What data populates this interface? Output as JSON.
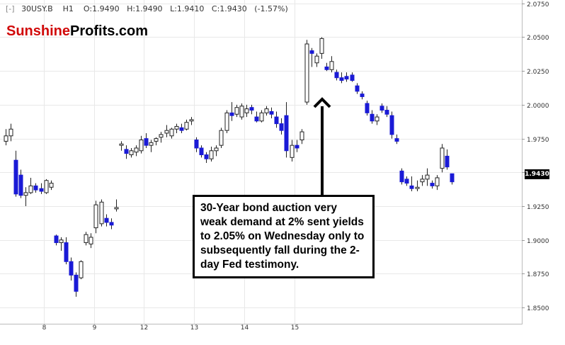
{
  "header": {
    "collapse_box": "[-]",
    "symbol": "30USY.B",
    "timeframe": "H1",
    "open": "O:1.9490",
    "high": "H:1.9490",
    "low": "L:1.9410",
    "close": "C:1.9430",
    "change": "(-1.57%)"
  },
  "logo": {
    "part1": "Sunshine",
    "part2": "Profits",
    "part3": ".com",
    "accent_color": "#d10a0a"
  },
  "annotation": {
    "text": "30-Year bond auction very weak demand at 2% sent yields to 2.05% on Wednesday only to subsequently fall during the 2-day Fed testimony."
  },
  "last_price_label": "1.9430",
  "chart_data": {
    "type": "candlestick",
    "title": "",
    "xlabel": "",
    "ylabel": "",
    "ylim": [
      1.8375,
      2.0775
    ],
    "yticks": [
      "2.0750",
      "2.0500",
      "2.0250",
      "2.0000",
      "1.9750",
      "1.9500",
      "1.9250",
      "1.9000",
      "1.8750",
      "1.8500"
    ],
    "xticks": [
      {
        "label": "8",
        "bar": 7.6
      },
      {
        "label": "9",
        "bar": 17.6
      },
      {
        "label": "12",
        "bar": 27.6
      },
      {
        "label": "13",
        "bar": 37.6
      },
      {
        "label": "14",
        "bar": 47.6
      },
      {
        "label": "15",
        "bar": 57.6
      }
    ],
    "colors": {
      "up": "#ffffff",
      "down": "#1a1ad6",
      "grid": "#e8e8e8",
      "axis_text": "#333333"
    },
    "grid": true,
    "candles": [
      [
        1.973,
        1.982,
        1.97,
        1.977
      ],
      [
        1.977,
        1.986,
        1.973,
        1.982
      ],
      [
        1.959,
        1.966,
        1.932,
        1.934
      ],
      [
        1.948,
        1.952,
        1.931,
        1.933
      ],
      [
        1.933,
        1.939,
        1.925,
        1.935
      ],
      [
        1.935,
        1.946,
        1.934,
        1.94
      ],
      [
        1.94,
        1.942,
        1.935,
        1.937
      ],
      [
        1.938,
        1.942,
        1.934,
        1.936
      ],
      [
        1.935,
        1.945,
        1.934,
        1.944
      ],
      [
        1.939,
        1.944,
        1.937,
        1.942
      ],
      [
        1.903,
        1.904,
        1.896,
        1.898
      ],
      [
        1.898,
        1.902,
        1.892,
        1.9
      ],
      [
        1.898,
        1.902,
        1.882,
        1.884
      ],
      [
        1.884,
        1.887,
        1.87,
        1.874
      ],
      [
        1.874,
        1.876,
        1.858,
        1.862
      ],
      [
        1.872,
        1.885,
        1.871,
        1.884
      ],
      [
        1.898,
        1.906,
        1.896,
        1.904
      ],
      [
        1.897,
        1.905,
        1.894,
        1.902
      ],
      [
        1.909,
        1.929,
        1.905,
        1.926
      ],
      [
        1.912,
        1.93,
        1.91,
        1.928
      ],
      [
        1.916,
        1.919,
        1.91,
        1.913
      ],
      [
        1.913,
        1.916,
        1.908,
        1.911
      ],
      [
        1.923,
        1.93,
        1.921,
        1.924
      ],
      [
        1.97,
        1.973,
        1.966,
        1.971
      ],
      [
        1.967,
        1.97,
        1.96,
        1.964
      ],
      [
        1.963,
        1.968,
        1.961,
        1.966
      ],
      [
        1.965,
        1.97,
        1.962,
        1.968
      ],
      [
        1.966,
        1.977,
        1.964,
        1.974
      ],
      [
        1.975,
        1.979,
        1.968,
        1.97
      ],
      [
        1.97,
        1.974,
        1.965,
        1.972
      ],
      [
        1.973,
        1.976,
        1.97,
        1.975
      ],
      [
        1.976,
        1.98,
        1.972,
        1.978
      ],
      [
        1.979,
        1.985,
        1.976,
        1.981
      ],
      [
        1.977,
        1.983,
        1.975,
        1.982
      ],
      [
        1.982,
        1.986,
        1.979,
        1.984
      ],
      [
        1.983,
        1.986,
        1.979,
        1.981
      ],
      [
        1.982,
        1.989,
        1.981,
        1.987
      ],
      [
        1.988,
        1.991,
        1.985,
        1.989
      ],
      [
        1.974,
        1.976,
        1.965,
        1.968
      ],
      [
        1.968,
        1.97,
        1.961,
        1.963
      ],
      [
        1.963,
        1.965,
        1.957,
        1.96
      ],
      [
        1.96,
        1.969,
        1.958,
        1.966
      ],
      [
        1.966,
        1.97,
        1.962,
        1.968
      ],
      [
        1.97,
        1.983,
        1.968,
        1.981
      ],
      [
        1.981,
        1.996,
        1.979,
        1.994
      ],
      [
        1.994,
        2.002,
        1.988,
        1.992
      ],
      [
        1.993,
        2.0,
        1.991,
        1.998
      ],
      [
        1.991,
        2.001,
        1.989,
        1.999
      ],
      [
        1.994,
        2.0,
        1.991,
        1.997
      ],
      [
        1.998,
        2.0,
        1.993,
        1.996
      ],
      [
        1.991,
        1.995,
        1.987,
        1.988
      ],
      [
        1.988,
        1.996,
        1.987,
        1.994
      ],
      [
        1.994,
        1.999,
        1.992,
        1.997
      ],
      [
        1.995,
        1.998,
        1.99,
        1.993
      ],
      [
        1.991,
        1.995,
        1.983,
        1.986
      ],
      [
        1.986,
        1.99,
        1.978,
        1.981
      ],
      [
        1.992,
        2.002,
        1.961,
        1.966
      ],
      [
        1.961,
        1.974,
        1.958,
        1.97
      ],
      [
        1.97,
        1.974,
        1.965,
        1.968
      ],
      [
        1.974,
        1.982,
        1.971,
        1.98
      ],
      [
        2.002,
        2.048,
        2.0,
        2.045
      ],
      [
        2.04,
        2.042,
        2.028,
        2.038
      ],
      [
        2.031,
        2.038,
        2.028,
        2.036
      ],
      [
        2.038,
        2.05,
        2.034,
        2.049
      ],
      [
        2.028,
        2.031,
        2.025,
        2.026
      ],
      [
        2.026,
        2.036,
        2.024,
        2.032
      ],
      [
        2.024,
        2.026,
        2.018,
        2.02
      ],
      [
        2.02,
        2.024,
        2.016,
        2.018
      ],
      [
        2.021,
        2.024,
        2.017,
        2.019
      ],
      [
        2.022,
        2.024,
        2.017,
        2.018
      ],
      [
        2.014,
        2.016,
        2.008,
        2.01
      ],
      [
        2.008,
        2.01,
        2.004,
        2.006
      ],
      [
        2.001,
        2.003,
        1.992,
        1.994
      ],
      [
        1.993,
        1.996,
        1.986,
        1.988
      ],
      [
        1.988,
        1.993,
        1.985,
        1.991
      ],
      [
        1.999,
        2.001,
        1.994,
        1.996
      ],
      [
        1.996,
        1.999,
        1.991,
        1.993
      ],
      [
        1.992,
        1.995,
        1.975,
        1.978
      ],
      [
        1.975,
        1.978,
        1.971,
        1.973
      ],
      [
        1.951,
        1.953,
        1.941,
        1.943
      ],
      [
        1.945,
        1.947,
        1.94,
        1.942
      ],
      [
        1.94,
        1.947,
        1.936,
        1.938
      ],
      [
        1.938,
        1.944,
        1.936,
        1.939
      ],
      [
        1.943,
        1.948,
        1.94,
        1.945
      ],
      [
        1.945,
        1.953,
        1.94,
        1.948
      ],
      [
        1.942,
        1.944,
        1.938,
        1.94
      ],
      [
        1.94,
        1.948,
        1.937,
        1.946
      ],
      [
        1.953,
        1.971,
        1.95,
        1.968
      ],
      [
        1.962,
        1.967,
        1.952,
        1.954
      ],
      [
        1.949,
        1.949,
        1.941,
        1.943
      ]
    ]
  }
}
